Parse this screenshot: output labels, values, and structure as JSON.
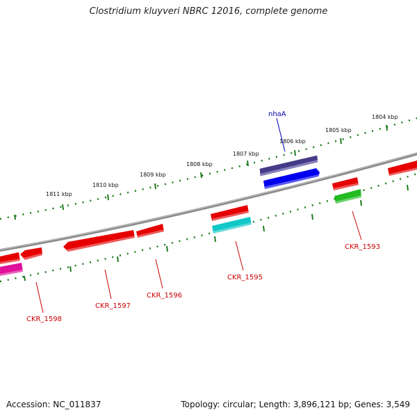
{
  "title": "Clostridium kluyveri NBRC 12016, complete genome",
  "footer": {
    "accession": "Accession: NC_011837",
    "summary": "Topology: circular; Length: 3,896,121 bp; Genes: 3,549"
  },
  "colors": {
    "backbone": "#7a7a7a",
    "ticks": "#1f7a1f",
    "gene_red": "#e60000",
    "gene_blue": "#0000ee",
    "gene_navy": "#443c88",
    "gene_cyan": "#10c8c8",
    "gene_green": "#22bb22",
    "gene_magenta": "#e0109a",
    "label_red": "#cc0000",
    "label_blue": "#0000aa"
  },
  "kbp_labels": [
    "1804 kbp",
    "1805 kbp",
    "1806 kbp",
    "1807 kbp",
    "1808 kbp",
    "1809 kbp",
    "1810 kbp",
    "1811 kbp"
  ],
  "gene_labels": {
    "nhaA": "nhaA",
    "ckr1593": "CKR_1593",
    "ckr1595": "CKR_1595",
    "ckr1596": "CKR_1596",
    "ckr1597": "CKR_1597",
    "ckr1598": "CKR_1598"
  }
}
